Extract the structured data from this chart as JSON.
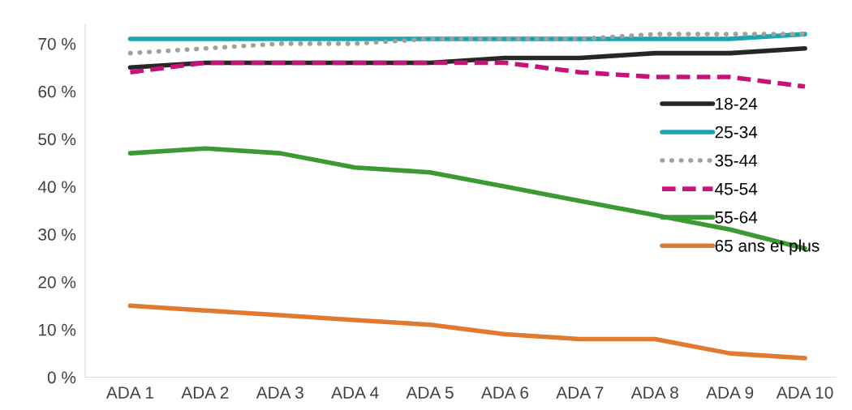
{
  "chart_data": {
    "type": "line",
    "categories": [
      "ADA 1",
      "ADA 2",
      "ADA 3",
      "ADA 4",
      "ADA 5",
      "ADA 6",
      "ADA 7",
      "ADA 8",
      "ADA 9",
      "ADA 10"
    ],
    "series": [
      {
        "name": "18-24",
        "color": "#262626",
        "line_style": "solid",
        "values": [
          65,
          66,
          66,
          66,
          66,
          67,
          67,
          68,
          68,
          69
        ]
      },
      {
        "name": "25-34",
        "color": "#1aa5b0",
        "line_style": "solid",
        "values": [
          71,
          71,
          71,
          71,
          71,
          71,
          71,
          71,
          71,
          72
        ]
      },
      {
        "name": "35-44",
        "color": "#a0a0a0",
        "line_style": "dotted",
        "values": [
          68,
          69,
          70,
          70,
          71,
          71,
          71,
          72,
          72,
          72
        ]
      },
      {
        "name": "45-54",
        "color": "#c8127a",
        "line_style": "dashed",
        "values": [
          64,
          66,
          66,
          66,
          66,
          66,
          64,
          63,
          63,
          61
        ]
      },
      {
        "name": "55-64",
        "color": "#3c9a35",
        "line_style": "solid",
        "values": [
          47,
          48,
          47,
          44,
          43,
          40,
          37,
          34,
          31,
          27
        ]
      },
      {
        "name": "65 ans et plus",
        "color": "#e07a2e",
        "line_style": "solid",
        "values": [
          15,
          14,
          13,
          12,
          11,
          9,
          8,
          8,
          5,
          4
        ]
      }
    ],
    "ylim": [
      0,
      74
    ],
    "yticks": [
      {
        "value": 0,
        "label": "0 %"
      },
      {
        "value": 10,
        "label": "10 %"
      },
      {
        "value": 20,
        "label": "20 %"
      },
      {
        "value": 30,
        "label": "30 %"
      },
      {
        "value": 40,
        "label": "40 %"
      },
      {
        "value": 50,
        "label": "50 %"
      },
      {
        "value": 60,
        "label": "60 %"
      },
      {
        "value": 70,
        "label": "70 %"
      }
    ],
    "grid": false,
    "legend": "right",
    "marker": "none"
  }
}
